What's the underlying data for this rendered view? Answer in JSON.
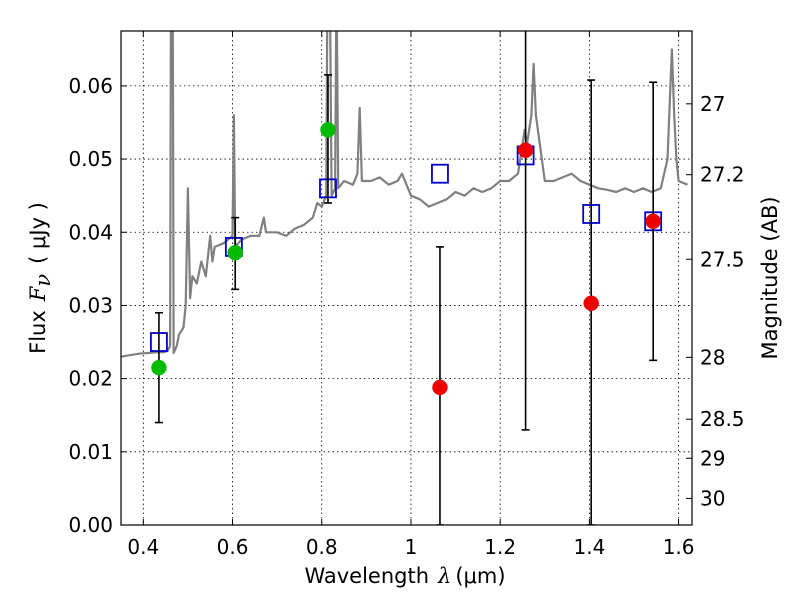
{
  "chart_data": {
    "type": "scatter",
    "xlabel": "Wavelength",
    "xlabel_symbol": "λ",
    "xlabel_unit": "(μm)",
    "ylabel": "Flux",
    "ylabel_symbol": "F",
    "ylabel_subscript": "ν",
    "ylabel_unit": "( μJy )",
    "y2label": "Magnitude (AB)",
    "xlim": [
      0.35,
      1.63
    ],
    "ylim": [
      0.0,
      0.0675
    ],
    "grid": true,
    "x_ticks": [
      {
        "value": 0.4,
        "label": "0.4"
      },
      {
        "value": 0.6,
        "label": "0.6"
      },
      {
        "value": 0.8,
        "label": "0.8"
      },
      {
        "value": 1.0,
        "label": "1"
      },
      {
        "value": 1.2,
        "label": "1.2"
      },
      {
        "value": 1.4,
        "label": "1.4"
      },
      {
        "value": 1.6,
        "label": "1.6"
      }
    ],
    "y_ticks": [
      {
        "value": 0.0,
        "label": "0.00"
      },
      {
        "value": 0.01,
        "label": "0.01"
      },
      {
        "value": 0.02,
        "label": "0.02"
      },
      {
        "value": 0.03,
        "label": "0.03"
      },
      {
        "value": 0.04,
        "label": "0.04"
      },
      {
        "value": 0.05,
        "label": "0.05"
      },
      {
        "value": 0.06,
        "label": "0.06"
      }
    ],
    "y2_ticks": [
      {
        "value": 27.0,
        "label": "27"
      },
      {
        "value": 27.2,
        "label": "27.2"
      },
      {
        "value": 27.5,
        "label": "27.5"
      },
      {
        "value": 28.0,
        "label": "28"
      },
      {
        "value": 28.5,
        "label": "28.5"
      },
      {
        "value": 29.0,
        "label": "29"
      },
      {
        "value": 30.0,
        "label": "30"
      }
    ],
    "series": [
      {
        "kind": "line",
        "color": "#808080",
        "points": [
          [
            0.35,
            0.023
          ],
          [
            0.37,
            0.0232
          ],
          [
            0.39,
            0.0234
          ],
          [
            0.41,
            0.0235
          ],
          [
            0.43,
            0.0236
          ],
          [
            0.445,
            0.0236
          ],
          [
            0.455,
            0.0238
          ],
          [
            0.46,
            0.0245
          ],
          [
            0.462,
            0.075
          ],
          [
            0.466,
            0.075
          ],
          [
            0.468,
            0.0235
          ],
          [
            0.475,
            0.0245
          ],
          [
            0.48,
            0.026
          ],
          [
            0.49,
            0.027
          ],
          [
            0.495,
            0.03
          ],
          [
            0.5,
            0.046
          ],
          [
            0.505,
            0.031
          ],
          [
            0.51,
            0.034
          ],
          [
            0.52,
            0.033
          ],
          [
            0.53,
            0.036
          ],
          [
            0.54,
            0.034
          ],
          [
            0.55,
            0.0395
          ],
          [
            0.555,
            0.036
          ],
          [
            0.56,
            0.038
          ],
          [
            0.58,
            0.0385
          ],
          [
            0.59,
            0.039
          ],
          [
            0.6,
            0.0395
          ],
          [
            0.603,
            0.056
          ],
          [
            0.606,
            0.038
          ],
          [
            0.62,
            0.039
          ],
          [
            0.64,
            0.0395
          ],
          [
            0.66,
            0.0395
          ],
          [
            0.67,
            0.042
          ],
          [
            0.675,
            0.04
          ],
          [
            0.7,
            0.04
          ],
          [
            0.72,
            0.0395
          ],
          [
            0.74,
            0.0405
          ],
          [
            0.76,
            0.041
          ],
          [
            0.78,
            0.042
          ],
          [
            0.79,
            0.044
          ],
          [
            0.8,
            0.0435
          ],
          [
            0.81,
            0.045
          ],
          [
            0.813,
            0.075
          ],
          [
            0.818,
            0.075
          ],
          [
            0.822,
            0.045
          ],
          [
            0.83,
            0.046
          ],
          [
            0.833,
            0.075
          ],
          [
            0.837,
            0.046
          ],
          [
            0.85,
            0.047
          ],
          [
            0.87,
            0.0465
          ],
          [
            0.88,
            0.048
          ],
          [
            0.885,
            0.057
          ],
          [
            0.89,
            0.047
          ],
          [
            0.91,
            0.047
          ],
          [
            0.93,
            0.0475
          ],
          [
            0.95,
            0.0465
          ],
          [
            0.97,
            0.047
          ],
          [
            0.98,
            0.048
          ],
          [
            1.0,
            0.045
          ],
          [
            1.02,
            0.0445
          ],
          [
            1.04,
            0.0435
          ],
          [
            1.06,
            0.044
          ],
          [
            1.08,
            0.0445
          ],
          [
            1.1,
            0.0455
          ],
          [
            1.12,
            0.045
          ],
          [
            1.14,
            0.046
          ],
          [
            1.16,
            0.0455
          ],
          [
            1.18,
            0.046
          ],
          [
            1.2,
            0.047
          ],
          [
            1.22,
            0.047
          ],
          [
            1.24,
            0.048
          ],
          [
            1.255,
            0.054
          ],
          [
            1.26,
            0.052
          ],
          [
            1.27,
            0.056
          ],
          [
            1.275,
            0.063
          ],
          [
            1.28,
            0.056
          ],
          [
            1.3,
            0.047
          ],
          [
            1.32,
            0.047
          ],
          [
            1.34,
            0.0475
          ],
          [
            1.36,
            0.048
          ],
          [
            1.38,
            0.047
          ],
          [
            1.4,
            0.0465
          ],
          [
            1.42,
            0.046
          ],
          [
            1.44,
            0.0458
          ],
          [
            1.46,
            0.0455
          ],
          [
            1.48,
            0.046
          ],
          [
            1.5,
            0.0455
          ],
          [
            1.52,
            0.046
          ],
          [
            1.54,
            0.0455
          ],
          [
            1.56,
            0.046
          ],
          [
            1.575,
            0.05
          ],
          [
            1.585,
            0.065
          ],
          [
            1.59,
            0.056
          ],
          [
            1.595,
            0.05
          ],
          [
            1.6,
            0.047
          ],
          [
            1.62,
            0.0465
          ]
        ]
      },
      {
        "kind": "points",
        "marker": "square",
        "color": "#0000cc",
        "points": [
          [
            0.435,
            0.025
          ],
          [
            0.603,
            0.038
          ],
          [
            0.814,
            0.046
          ],
          [
            1.065,
            0.048
          ],
          [
            1.257,
            0.0505
          ],
          [
            1.404,
            0.0425
          ],
          [
            1.543,
            0.0415
          ]
        ]
      },
      {
        "kind": "points",
        "marker": "circle",
        "color": "#00bb00",
        "points": [
          [
            0.435,
            0.0215
          ],
          [
            0.606,
            0.0372
          ],
          [
            0.814,
            0.054
          ]
        ],
        "errors": [
          [
            0.014,
            0.029
          ],
          [
            0.0322,
            0.042
          ],
          [
            0.044,
            0.0615
          ]
        ]
      },
      {
        "kind": "points",
        "marker": "circle",
        "color": "#ee0000",
        "points": [
          [
            1.065,
            0.0188
          ],
          [
            1.257,
            0.0512
          ],
          [
            1.404,
            0.0303
          ],
          [
            1.543,
            0.0415
          ]
        ],
        "errors": [
          [
            0.0,
            0.038
          ],
          [
            0.013,
            0.07
          ],
          [
            0.0,
            0.0608
          ],
          [
            0.0225,
            0.0605
          ]
        ]
      }
    ]
  }
}
